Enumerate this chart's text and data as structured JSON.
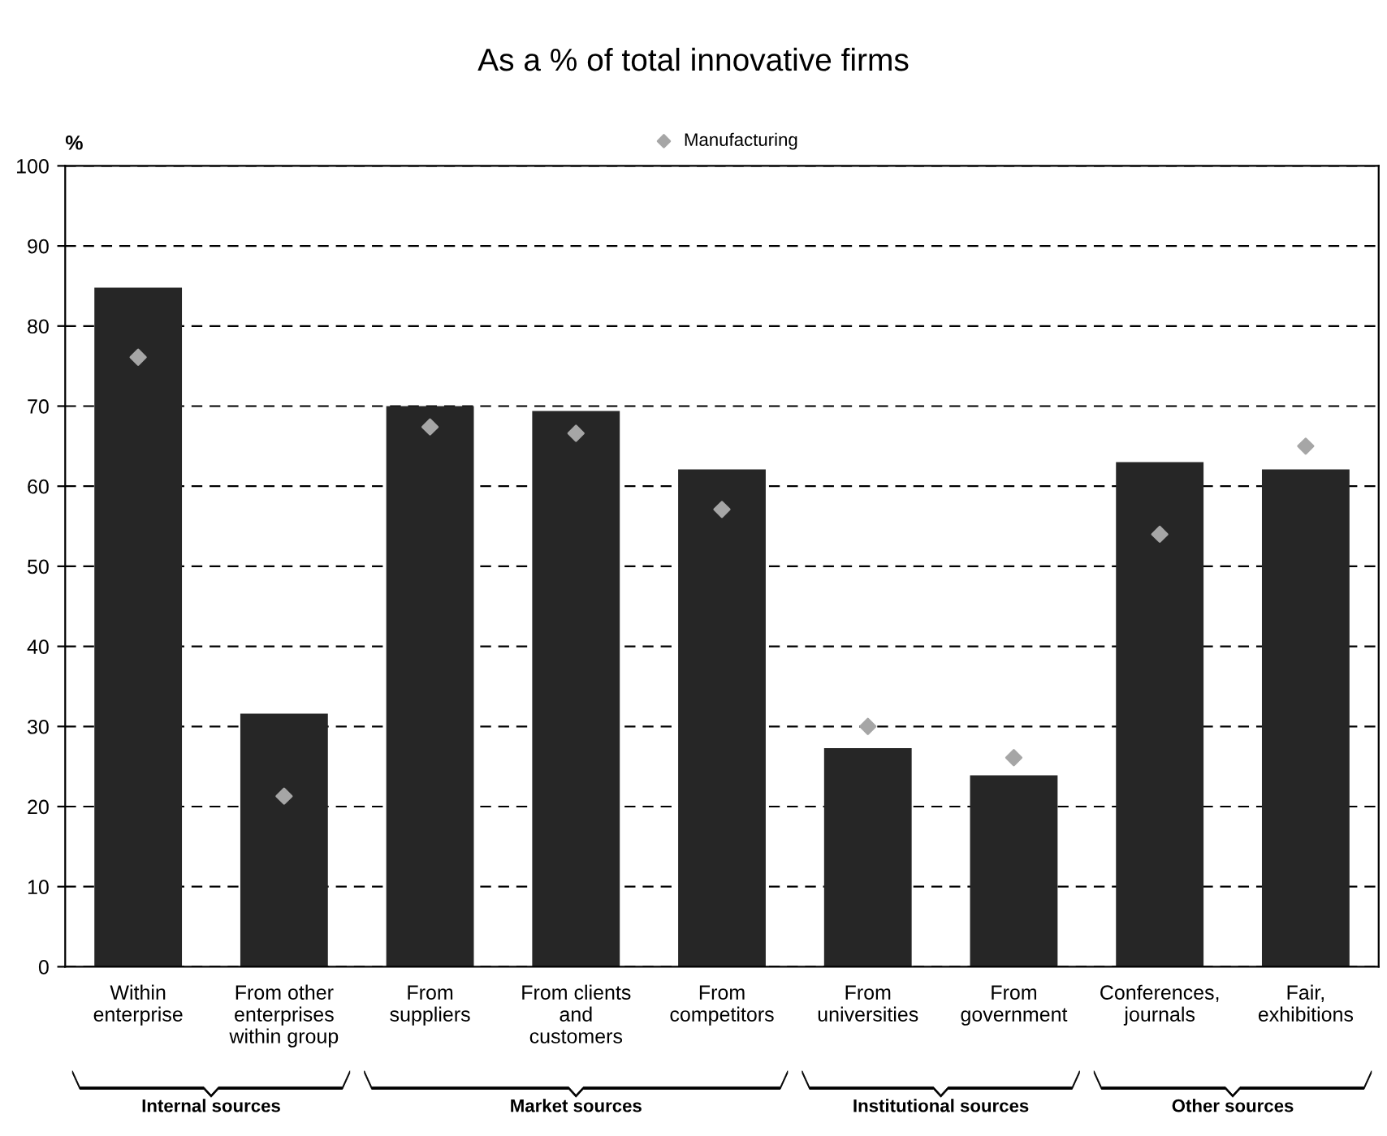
{
  "chart_data": {
    "type": "bar",
    "title": "As a % of total innovative firms",
    "ylabel": "%",
    "categories": [
      "Within\nenterprise",
      "From other\nenterprises\nwithin group",
      "From\nsuppliers",
      "From clients\nand\ncustomers",
      "From\ncompetitors",
      "From\nuniversities",
      "From\ngovernment",
      "Conferences,\njournals",
      "Fair,\nexhibitions"
    ],
    "series": [
      {
        "color": "#262626",
        "values": [
          84.8,
          31.6,
          70,
          69.4,
          62.1,
          27.3,
          23.9,
          63,
          62.1
        ]
      },
      {
        "name": "Manufacturing",
        "type": "scatter",
        "marker": "diamond",
        "color": "#a6a6a6",
        "values": [
          76.1,
          21.3,
          67.4,
          66.6,
          57.1,
          30,
          26.1,
          54,
          65
        ]
      }
    ],
    "annotations": [
      "Internal sources",
      "Market sources",
      "Institutional sources",
      "Other sources"
    ],
    "ylim": [
      0,
      100
    ],
    "yticks": [
      0,
      10,
      20,
      30,
      40,
      50,
      60,
      70,
      80,
      90,
      100
    ],
    "grid": "y",
    "legend": "top"
  }
}
